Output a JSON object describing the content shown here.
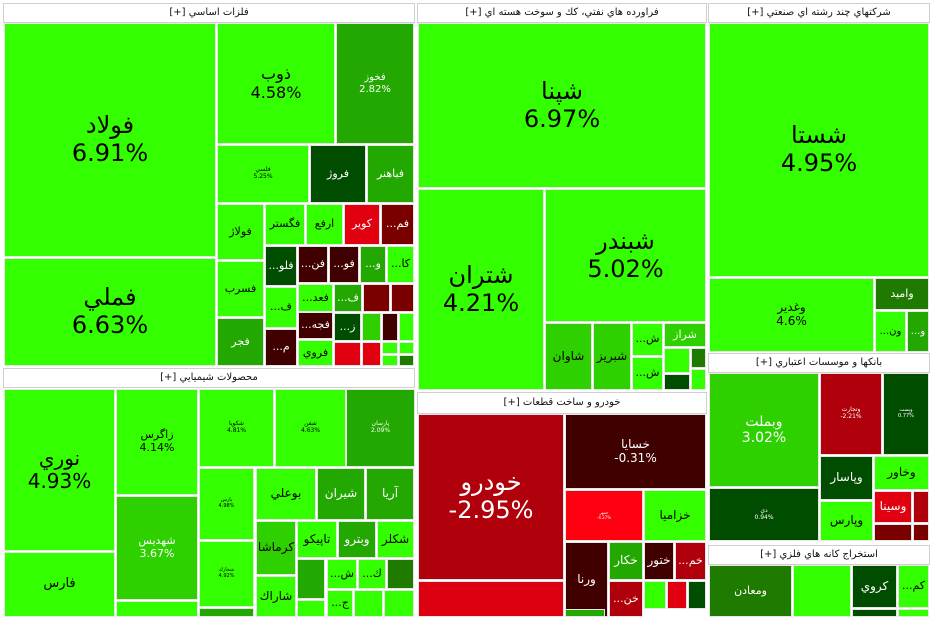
{
  "sectors": [
    {
      "title": "فلزات اساسي [+]",
      "tiles": [
        {
          "name": "فولاد",
          "pct": "6.91%",
          "color": "#33ff00"
        },
        {
          "name": "فملي",
          "pct": "6.63%",
          "color": "#33ff00"
        },
        {
          "name": "ذوب",
          "pct": "4.58%",
          "color": "#33ff00"
        },
        {
          "name": "فخوز",
          "pct": "2.82%",
          "color": "#22a800"
        },
        {
          "name": "فلسي",
          "pct": "5.25%",
          "color": "#33ff00"
        },
        {
          "name": "فروژ",
          "pct": "",
          "color": "#004d00"
        },
        {
          "name": "فباهنر",
          "pct": "",
          "color": "#22a800"
        },
        {
          "name": "فولاژ",
          "pct": "",
          "color": "#33ff00"
        },
        {
          "name": "فسرب",
          "pct": "",
          "color": "#33ff00"
        },
        {
          "name": "فجر",
          "pct": "",
          "color": "#22a800"
        },
        {
          "name": "فگستر",
          "pct": "",
          "color": "#33ff00"
        },
        {
          "name": "ارفع",
          "pct": "",
          "color": "#33ff00"
        },
        {
          "name": "كوير",
          "pct": "",
          "color": "#e00010"
        },
        {
          "name": "...فم",
          "pct": "",
          "color": "#7a0000"
        },
        {
          "name": "...فلو",
          "pct": "",
          "color": "#004d00"
        },
        {
          "name": "...فن",
          "pct": "",
          "color": "#400000"
        },
        {
          "name": "...فو",
          "pct": "",
          "color": "#400000"
        },
        {
          "name": "...و",
          "pct": "",
          "color": "#22a800"
        },
        {
          "name": "...كا",
          "pct": "",
          "color": "#33ff00"
        },
        {
          "name": "...ف",
          "pct": "",
          "color": "#33ff00"
        },
        {
          "name": "...فعد",
          "pct": "",
          "color": "#33ff00"
        },
        {
          "name": "...ف",
          "pct": "",
          "color": "#22a800"
        },
        {
          "name": "",
          "pct": "",
          "color": "#7a0000"
        },
        {
          "name": "",
          "pct": "",
          "color": "#7a0000"
        },
        {
          "name": "...م",
          "pct": "",
          "color": "#400000"
        },
        {
          "name": "...فجه",
          "pct": "",
          "color": "#400000"
        },
        {
          "name": "فروي",
          "pct": "",
          "color": "#33ff00"
        },
        {
          "name": "...ز",
          "pct": "",
          "color": "#004d00"
        },
        {
          "name": "",
          "pct": "",
          "color": "#e00010"
        },
        {
          "name": "",
          "pct": "",
          "color": "#2ed000"
        },
        {
          "name": "",
          "pct": "",
          "color": "#400000"
        },
        {
          "name": "",
          "pct": "",
          "color": "#33ff00"
        },
        {
          "name": "",
          "pct": "",
          "color": "#e00010"
        },
        {
          "name": "",
          "pct": "",
          "color": "#33ff00"
        },
        {
          "name": "",
          "pct": "",
          "color": "#33ff00"
        },
        {
          "name": "",
          "pct": "",
          "color": "#33ff00"
        },
        {
          "name": "",
          "pct": "",
          "color": "#1f7a00"
        }
      ]
    },
    {
      "title": "محصولات شيميايي [+]",
      "tiles": [
        {
          "name": "نوري",
          "pct": "4.93%",
          "color": "#33ff00"
        },
        {
          "name": "فارس",
          "pct": "",
          "color": "#33ff00"
        },
        {
          "name": "زاگرس",
          "pct": "4.14%",
          "color": "#33ff00"
        },
        {
          "name": "شهديس",
          "pct": "3.67%",
          "color": "#2ed000"
        },
        {
          "name": "",
          "pct": "",
          "color": "#33ff00"
        },
        {
          "name": "شكويا",
          "pct": "4.81%",
          "color": "#33ff00"
        },
        {
          "name": "شفن",
          "pct": "4.63%",
          "color": "#33ff00"
        },
        {
          "name": "پارسان",
          "pct": "2.09%",
          "color": "#22a800"
        },
        {
          "name": "پارس",
          "pct": "4.98%",
          "color": "#33ff00"
        },
        {
          "name": "شخارك",
          "pct": "4.92%",
          "color": "#33ff00"
        },
        {
          "name": "",
          "pct": "",
          "color": "#22a800"
        },
        {
          "name": "بوعلي",
          "pct": "",
          "color": "#33ff00"
        },
        {
          "name": "شيران",
          "pct": "",
          "color": "#22a800"
        },
        {
          "name": "آريا",
          "pct": "",
          "color": "#22a800"
        },
        {
          "name": "كرماشا",
          "pct": "",
          "color": "#2ed000"
        },
        {
          "name": "شاراك",
          "pct": "",
          "color": "#33ff00"
        },
        {
          "name": "تاپيكو",
          "pct": "",
          "color": "#33ff00"
        },
        {
          "name": "وبترو",
          "pct": "",
          "color": "#22a800"
        },
        {
          "name": "شكلر",
          "pct": "",
          "color": "#33ff00"
        },
        {
          "name": "",
          "pct": "",
          "color": "#22a800"
        },
        {
          "name": "...ش",
          "pct": "",
          "color": "#33ff00"
        },
        {
          "name": "...ك",
          "pct": "",
          "color": "#33ff00"
        },
        {
          "name": "",
          "pct": "",
          "color": "#1f7a00"
        },
        {
          "name": "",
          "pct": "",
          "color": "#33ff00"
        },
        {
          "name": "...ج",
          "pct": "",
          "color": "#33ff00"
        },
        {
          "name": "",
          "pct": "",
          "color": "#33ff00"
        },
        {
          "name": "",
          "pct": "",
          "color": "#33ff00"
        }
      ]
    },
    {
      "title": "فراورده هاي نفتي، كك و سوخت هسته اي [+]",
      "tiles": [
        {
          "name": "شپنا",
          "pct": "6.97%",
          "color": "#33ff00"
        },
        {
          "name": "شتران",
          "pct": "4.21%",
          "color": "#33ff00"
        },
        {
          "name": "شبندر",
          "pct": "5.02%",
          "color": "#33ff00"
        },
        {
          "name": "شاوان",
          "pct": "",
          "color": "#2ed000"
        },
        {
          "name": "شبريز",
          "pct": "",
          "color": "#2ed000"
        },
        {
          "name": "...ش",
          "pct": "",
          "color": "#33ff00"
        },
        {
          "name": "...ش",
          "pct": "",
          "color": "#33ff00"
        },
        {
          "name": "شراز",
          "pct": "",
          "color": "#2ed000"
        },
        {
          "name": "",
          "pct": "",
          "color": "#33ff00"
        },
        {
          "name": "",
          "pct": "",
          "color": "#1f7a00"
        },
        {
          "name": "",
          "pct": "",
          "color": "#004d00"
        },
        {
          "name": "",
          "pct": "",
          "color": "#33ff00"
        }
      ]
    },
    {
      "title": "خودرو و ساخت قطعات [+]",
      "tiles": [
        {
          "name": "خودرو",
          "pct": "-2.95%",
          "color": "#b0000c"
        },
        {
          "name": "",
          "pct": "",
          "color": "#dc0010"
        },
        {
          "name": "خسايا",
          "pct": "-0.31%",
          "color": "#400000"
        },
        {
          "name": "خمهر",
          "pct": "-4.27%",
          "color": "#ff0010"
        },
        {
          "name": "خزاميا",
          "pct": "",
          "color": "#33ff00"
        },
        {
          "name": "ورنا",
          "pct": "",
          "color": "#400000"
        },
        {
          "name": "خكار",
          "pct": "",
          "color": "#22a800"
        },
        {
          "name": "ختور",
          "pct": "",
          "color": "#400000"
        },
        {
          "name": "...خم",
          "pct": "",
          "color": "#b0000c"
        },
        {
          "name": "...خن",
          "pct": "",
          "color": "#b0000c"
        },
        {
          "name": "",
          "pct": "",
          "color": "#33ff00"
        },
        {
          "name": "",
          "pct": "",
          "color": "#e00010"
        },
        {
          "name": "",
          "pct": "",
          "color": "#004d00"
        },
        {
          "name": "",
          "pct": "",
          "color": "#22a800"
        }
      ]
    },
    {
      "title": "شركتهاي چند رشته اي صنعتي [+]",
      "tiles": [
        {
          "name": "شستا",
          "pct": "4.95%",
          "color": "#33ff00"
        },
        {
          "name": "وغدير",
          "pct": "4.6%",
          "color": "#33ff00"
        },
        {
          "name": "واميد",
          "pct": "",
          "color": "#1f7a00"
        },
        {
          "name": "...ون",
          "pct": "",
          "color": "#33ff00"
        },
        {
          "name": "...و",
          "pct": "",
          "color": "#22a800"
        }
      ]
    },
    {
      "title": "بانكها و موسسات اعتباري [+]",
      "tiles": [
        {
          "name": "وبملت",
          "pct": "3.02%",
          "color": "#2ed000"
        },
        {
          "name": "وتجارت",
          "pct": "-2.21%",
          "color": "#b0000c"
        },
        {
          "name": "وپست",
          "pct": "0.77%",
          "color": "#004d00"
        },
        {
          "name": "دي",
          "pct": "0.94%",
          "color": "#004d00"
        },
        {
          "name": "وپاسار",
          "pct": "",
          "color": "#004d00"
        },
        {
          "name": "وخاور",
          "pct": "",
          "color": "#33ff00"
        },
        {
          "name": "وسينا",
          "pct": "",
          "color": "#e00010"
        },
        {
          "name": "",
          "pct": "",
          "color": "#b0000c"
        },
        {
          "name": "وپارس",
          "pct": "",
          "color": "#33ff00"
        },
        {
          "name": "",
          "pct": "",
          "color": "#7a0000"
        },
        {
          "name": "",
          "pct": "",
          "color": "#7a0000"
        }
      ]
    },
    {
      "title": "استخراج كانه هاي فلزي [+]",
      "tiles": [
        {
          "name": "ومعادن",
          "pct": "",
          "color": "#1f7a00"
        },
        {
          "name": "",
          "pct": "",
          "color": "#33ff00"
        },
        {
          "name": "كروي",
          "pct": "",
          "color": "#004d00"
        },
        {
          "name": "...كم",
          "pct": "",
          "color": "#33ff00"
        },
        {
          "name": "",
          "pct": "",
          "color": "#004d00"
        },
        {
          "name": "",
          "pct": "",
          "color": "#33ff00"
        }
      ]
    }
  ]
}
